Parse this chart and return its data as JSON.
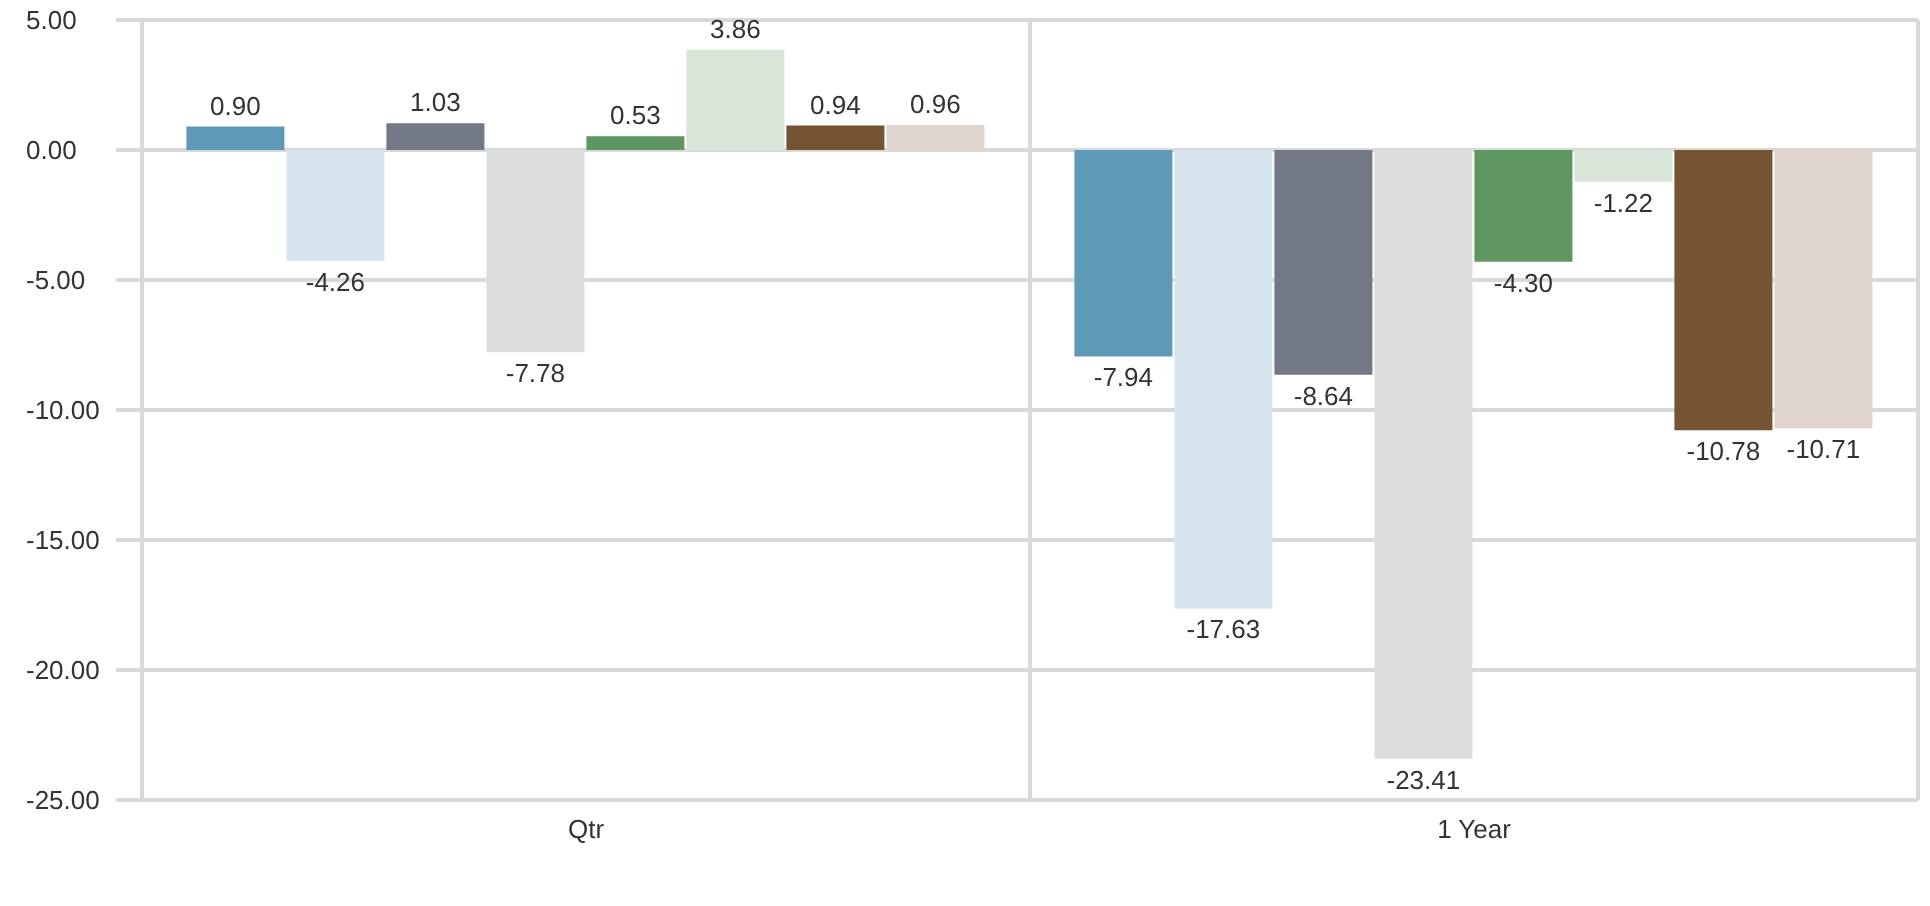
{
  "chart_data": {
    "type": "bar",
    "categories": [
      "Qtr",
      "1 Year"
    ],
    "series": [
      {
        "color": "#5e9ab8",
        "values": [
          0.9,
          -7.94
        ],
        "value_labels": [
          "0.90",
          "-7.94"
        ]
      },
      {
        "color": "#d7e6ee",
        "values": [
          -4.26,
          -17.63
        ],
        "value_labels": [
          "-4.26",
          "-17.63"
        ]
      },
      {
        "color": "#747986",
        "values": [
          1.03,
          -8.64
        ],
        "value_labels": [
          "1.03",
          "-8.64"
        ]
      },
      {
        "color": "#dcdddf",
        "values": [
          -7.78,
          -23.41
        ],
        "value_labels": [
          "-7.78",
          "-23.41"
        ]
      },
      {
        "color": "#5f9662",
        "values": [
          0.53,
          -4.3
        ],
        "value_labels": [
          "0.53",
          "-4.30"
        ]
      },
      {
        "color": "#d9e5d8",
        "values": [
          3.86,
          -1.22
        ],
        "value_labels": [
          "3.86",
          "-1.22"
        ]
      },
      {
        "color": "#745433",
        "values": [
          0.94,
          -10.78
        ],
        "value_labels": [
          "0.94",
          "-10.78"
        ]
      },
      {
        "color": "#dfd5ce",
        "values": [
          0.96,
          -10.71
        ],
        "value_labels": [
          "0.96",
          "-10.71"
        ]
      }
    ],
    "ylim": [
      -25,
      5
    ],
    "yticks": [
      {
        "value": 5,
        "label": "5.00"
      },
      {
        "value": 0,
        "label": "0.00"
      },
      {
        "value": -5,
        "label": "-5.00"
      },
      {
        "value": -10,
        "label": "-10.00"
      },
      {
        "value": -15,
        "label": "-15.00"
      },
      {
        "value": -20,
        "label": "-20.00"
      },
      {
        "value": -25,
        "label": "-25.00"
      }
    ],
    "grid": true
  }
}
